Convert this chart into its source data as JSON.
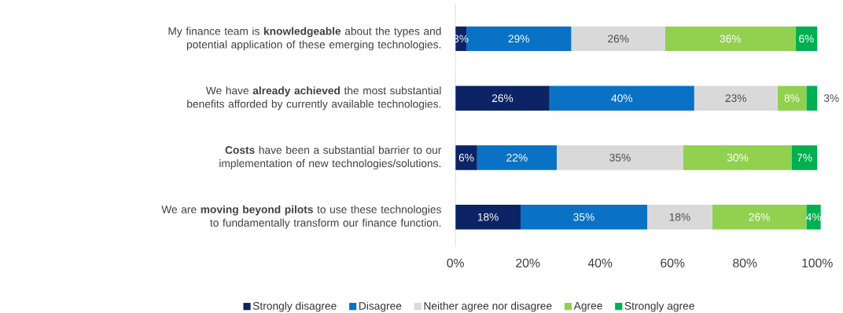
{
  "chart_data": {
    "type": "bar",
    "orientation": "horizontal",
    "stacked": true,
    "categories": [
      "My finance team is **knowledgeable** about the types and potential application of these emerging technologies.",
      "We have **already achieved** the most substantial benefits afforded by currently available technologies.",
      "**Costs** have been a substantial barrier to our implementation of new technologies/solutions.",
      "We are **moving beyond pilots** to use these technologies to fundamentally transform our finance function."
    ],
    "series": [
      {
        "name": "Strongly disagree",
        "color": "#0c2366",
        "values": [
          3,
          26,
          6,
          18
        ],
        "value_labels": [
          "3%",
          "26%",
          "6%",
          "18%"
        ]
      },
      {
        "name": "Disagree",
        "color": "#0a72c4",
        "values": [
          29,
          40,
          22,
          35
        ],
        "value_labels": [
          "29%",
          "40%",
          "22%",
          "35%"
        ]
      },
      {
        "name": "Neither agree nor disagree",
        "color": "#d9d9d9",
        "values": [
          26,
          23,
          35,
          18
        ],
        "value_labels": [
          "26%",
          "23%",
          "35%",
          "18%"
        ]
      },
      {
        "name": "Agree",
        "color": "#92d050",
        "values": [
          36,
          8,
          30,
          26
        ],
        "value_labels": [
          "36%",
          "8%",
          "30%",
          "26%"
        ]
      },
      {
        "name": "Strongly agree",
        "color": "#00b050",
        "values": [
          6,
          3,
          7,
          4
        ],
        "value_labels": [
          "6%",
          "3%",
          "7%",
          "4%"
        ]
      }
    ],
    "xlim": [
      0,
      101
    ],
    "xticks": [
      {
        "value": 0,
        "label": "0%"
      },
      {
        "value": 20,
        "label": "20%"
      },
      {
        "value": 40,
        "label": "40%"
      },
      {
        "value": 60,
        "label": "60%"
      },
      {
        "value": 80,
        "label": "80%"
      },
      {
        "value": 100,
        "label": "100%"
      }
    ],
    "legend": "bottom"
  }
}
